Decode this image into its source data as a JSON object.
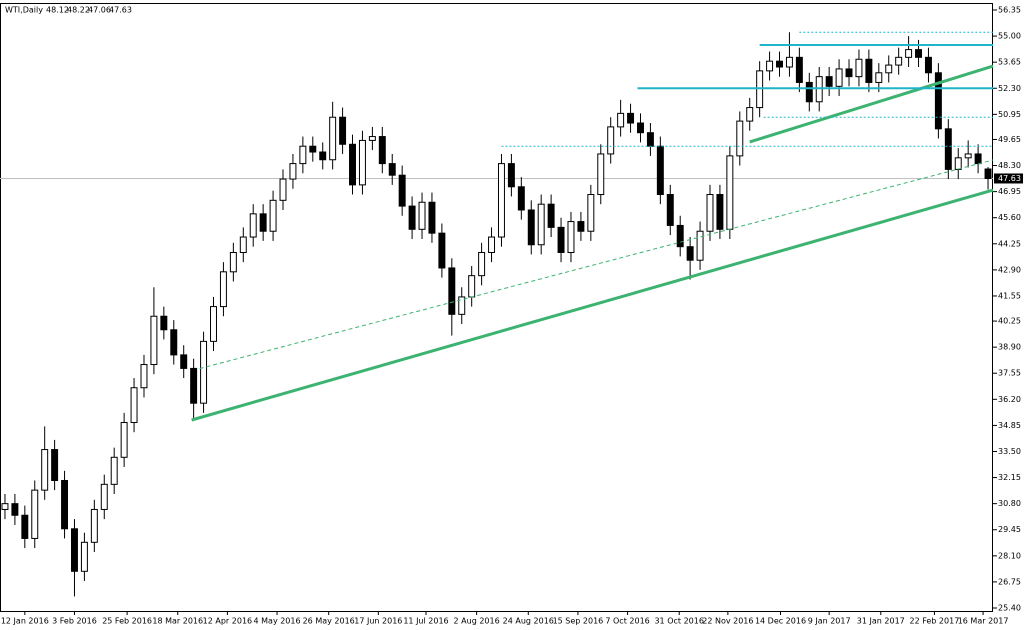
{
  "chart_data": {
    "type": "candlestick",
    "symbol": "WTI,Daily",
    "x": [
      0,
      1,
      2,
      3,
      4,
      5,
      6,
      7,
      8,
      9,
      10,
      11,
      12,
      13,
      14,
      15,
      16,
      17,
      18,
      19,
      20,
      21,
      22,
      23,
      24,
      25,
      26,
      27,
      28,
      29,
      30,
      31,
      32,
      33,
      34,
      35,
      36,
      37,
      38,
      39,
      40,
      41,
      42,
      43,
      44,
      45,
      46,
      47,
      48,
      49,
      50,
      51,
      52,
      53,
      54,
      55,
      56,
      57,
      58,
      59,
      60,
      61,
      62,
      63,
      64,
      65,
      66,
      67,
      68,
      69,
      70,
      71,
      72,
      73,
      74,
      75,
      76,
      77,
      78,
      79,
      80,
      81,
      82,
      83,
      84,
      85,
      86,
      87,
      88,
      89,
      90,
      91,
      92,
      93,
      94,
      95,
      96,
      97,
      98,
      99
    ],
    "open": [
      30.5,
      30.8,
      30.2,
      29.0,
      31.5,
      33.6,
      32.0,
      29.5,
      27.3,
      28.8,
      30.5,
      31.8,
      33.2,
      35.0,
      36.8,
      38.0,
      40.5,
      39.8,
      38.5,
      37.8,
      36.0,
      39.2,
      41.0,
      42.8,
      43.8,
      44.6,
      45.8,
      44.9,
      46.5,
      47.6,
      48.4,
      49.3,
      49.0,
      48.6,
      50.8,
      49.4,
      47.3,
      49.6,
      49.8,
      48.4,
      47.8,
      46.2,
      45.0,
      46.4,
      44.8,
      43.0,
      40.6,
      41.5,
      42.6,
      43.8,
      44.6,
      48.4,
      47.2,
      46.0,
      44.2,
      46.3,
      45.1,
      43.8,
      45.4,
      44.9,
      46.8,
      48.9,
      50.3,
      51.0,
      50.5,
      50.0,
      49.3,
      46.8,
      45.2,
      44.1,
      43.4,
      44.9,
      46.8,
      45.0,
      48.8,
      50.6,
      51.3,
      53.2,
      53.7,
      53.4,
      53.9,
      52.6,
      51.6,
      52.9,
      52.4,
      53.3,
      52.9,
      53.8,
      52.6,
      53.1,
      53.5,
      53.9,
      54.3,
      53.9,
      53.1,
      50.2,
      48.1,
      48.7,
      48.9,
      48.12
    ],
    "high": [
      31.3,
      31.3,
      30.7,
      32.0,
      34.8,
      34.1,
      32.5,
      30.0,
      29.3,
      31.0,
      32.3,
      33.7,
      35.5,
      37.3,
      38.5,
      42.0,
      41.0,
      40.3,
      39.0,
      38.3,
      39.7,
      41.5,
      43.3,
      44.3,
      45.1,
      46.3,
      46.3,
      47.0,
      48.1,
      48.9,
      49.8,
      49.8,
      49.5,
      51.6,
      51.3,
      49.9,
      50.1,
      50.3,
      50.3,
      48.9,
      48.3,
      46.7,
      46.9,
      46.9,
      45.3,
      43.5,
      42.0,
      43.1,
      44.3,
      45.1,
      48.9,
      48.9,
      47.7,
      46.5,
      46.8,
      46.8,
      45.6,
      45.9,
      45.9,
      47.3,
      49.4,
      50.8,
      51.7,
      51.5,
      51.0,
      50.5,
      49.8,
      47.3,
      45.7,
      44.6,
      45.4,
      47.3,
      47.3,
      49.3,
      51.1,
      51.8,
      53.7,
      54.2,
      54.2,
      55.2,
      54.4,
      53.1,
      53.4,
      53.4,
      53.8,
      53.8,
      54.3,
      54.3,
      53.6,
      54.0,
      54.4,
      55.0,
      54.8,
      54.4,
      53.6,
      50.7,
      49.2,
      49.6,
      49.4,
      48.22
    ],
    "low": [
      30.0,
      29.7,
      28.5,
      28.5,
      31.0,
      31.5,
      29.0,
      26.0,
      26.8,
      28.3,
      30.0,
      31.3,
      32.7,
      34.5,
      36.3,
      37.5,
      39.3,
      38.0,
      37.3,
      35.2,
      35.5,
      38.7,
      40.5,
      42.3,
      43.3,
      44.1,
      44.4,
      44.4,
      46.0,
      47.1,
      47.9,
      48.5,
      48.1,
      48.1,
      48.9,
      46.8,
      46.8,
      49.1,
      47.9,
      47.3,
      45.7,
      44.5,
      44.5,
      44.3,
      42.5,
      39.5,
      40.1,
      41.0,
      42.1,
      43.3,
      44.1,
      46.7,
      45.5,
      43.7,
      43.7,
      44.6,
      43.3,
      43.3,
      44.4,
      44.4,
      46.3,
      48.4,
      49.8,
      50.0,
      49.5,
      48.8,
      46.3,
      44.7,
      43.6,
      42.4,
      42.9,
      44.4,
      44.5,
      44.5,
      48.3,
      50.1,
      50.8,
      52.7,
      52.9,
      52.9,
      52.1,
      51.1,
      51.1,
      51.9,
      51.9,
      52.4,
      52.4,
      52.1,
      52.1,
      52.6,
      53.0,
      53.4,
      53.4,
      52.6,
      49.7,
      47.6,
      47.6,
      48.2,
      47.9,
      47.06
    ],
    "close": [
      30.8,
      30.2,
      29.0,
      31.5,
      33.6,
      32.0,
      29.5,
      27.3,
      28.8,
      30.5,
      31.8,
      33.2,
      35.0,
      36.8,
      38.0,
      40.5,
      39.8,
      38.5,
      37.8,
      36.0,
      39.2,
      41.0,
      42.8,
      43.8,
      44.6,
      45.8,
      44.9,
      46.5,
      47.6,
      48.4,
      49.3,
      49.0,
      48.6,
      50.8,
      49.4,
      47.3,
      49.6,
      49.8,
      48.4,
      47.8,
      46.2,
      45.0,
      46.4,
      44.8,
      43.0,
      40.6,
      41.5,
      42.6,
      43.8,
      44.6,
      48.4,
      47.2,
      46.0,
      44.2,
      46.3,
      45.1,
      43.8,
      45.4,
      44.9,
      46.8,
      48.9,
      50.3,
      51.0,
      50.5,
      50.0,
      49.3,
      46.8,
      45.2,
      44.1,
      43.4,
      44.9,
      46.8,
      45.0,
      48.8,
      50.6,
      51.3,
      53.2,
      53.7,
      53.4,
      53.9,
      52.6,
      51.6,
      52.9,
      52.4,
      53.3,
      52.9,
      53.8,
      52.6,
      53.1,
      53.5,
      53.9,
      54.3,
      53.9,
      53.1,
      50.2,
      48.1,
      48.7,
      48.9,
      48.4,
      47.63
    ],
    "up_color": "#ffffff",
    "down_color": "#000000",
    "wick_color": "#000000",
    "xlim": [
      -0.5,
      99.5
    ],
    "xticks": [
      {
        "value": 2,
        "label": "12 Jan 2016"
      },
      {
        "value": 7,
        "label": "3 Feb 2016"
      },
      {
        "value": 12.3,
        "label": "25 Feb 2016"
      },
      {
        "value": 17.4,
        "label": "18 Mar 2016"
      },
      {
        "value": 22.4,
        "label": "12 Apr 2016"
      },
      {
        "value": 27.4,
        "label": "4 May 2016"
      },
      {
        "value": 32.6,
        "label": "26 May 2016"
      },
      {
        "value": 37.6,
        "label": "17 Jun 2016"
      },
      {
        "value": 42.4,
        "label": "11 Jul 2016"
      },
      {
        "value": 47.5,
        "label": "2 Aug 2016"
      },
      {
        "value": 52.7,
        "label": "24 Aug 2016"
      },
      {
        "value": 57.7,
        "label": "15 Sep 2016"
      },
      {
        "value": 62.7,
        "label": "7 Oct 2016"
      },
      {
        "value": 67.9,
        "label": "31 Oct 2016"
      },
      {
        "value": 72.8,
        "label": "22 Nov 2016"
      },
      {
        "value": 78.1,
        "label": "14 Dec 2016"
      },
      {
        "value": 83,
        "label": "9 Jan 2017"
      },
      {
        "value": 88.2,
        "label": "31 Jan 2017"
      },
      {
        "value": 93.6,
        "label": "22 Feb 2017"
      },
      {
        "value": 98.5,
        "label": "16 Mar 2017"
      }
    ],
    "ylim": [
      25.4,
      56.35
    ],
    "yticks": [
      {
        "value": 25.4,
        "label": "25.40"
      },
      26.75,
      {
        "value": 28.1,
        "label": "28.10"
      },
      29.45,
      {
        "value": 30.8,
        "label": "30.80"
      },
      32.15,
      {
        "value": 33.5,
        "label": "33.50"
      },
      34.85,
      {
        "value": 36.2,
        "label": "36.20"
      },
      37.55,
      {
        "value": 38.9,
        "label": "38.90"
      },
      40.25,
      41.55,
      {
        "value": 42.9,
        "label": "42.90"
      },
      44.25,
      {
        "value": 45.6,
        "label": "45.60"
      },
      46.95,
      {
        "value": 48.3,
        "label": "48.30"
      },
      49.65,
      50.95,
      {
        "value": 52.3,
        "label": "52.30"
      },
      53.65,
      {
        "value": 55.0,
        "label": "55.00"
      },
      56.35
    ],
    "grid": false,
    "lines": [
      {
        "x": [
          18.8,
          100
        ],
        "y": [
          35.13,
          47.03
        ],
        "color": "#3cb371",
        "style": "solid",
        "width": 3
      },
      {
        "x": [
          19.6,
          100
        ],
        "y": [
          37.79,
          48.59
        ],
        "color": "#3cb371",
        "style": "dashed",
        "width": 1
      },
      {
        "x": [
          75,
          100
        ],
        "y": [
          49.52,
          53.45
        ],
        "color": "#3cb371",
        "style": "solid",
        "width": 3
      },
      {
        "x": [
          76,
          100
        ],
        "y": [
          54.54,
          54.54
        ],
        "color": "#1fb5c9",
        "style": "solid",
        "width": 2
      },
      {
        "x": [
          63.7,
          100
        ],
        "y": [
          52.3,
          52.3
        ],
        "color": "#1fb5c9",
        "style": "solid",
        "width": 2
      },
      {
        "x": [
          80,
          100
        ],
        "y": [
          55.2,
          55.2
        ],
        "color": "#1fb5c9",
        "style": "dotted",
        "width": 1
      },
      {
        "x": [
          76.4,
          100
        ],
        "y": [
          50.8,
          50.8
        ],
        "color": "#1fb5c9",
        "style": "dotted",
        "width": 1
      },
      {
        "x": [
          50,
          100
        ],
        "y": [
          49.3,
          49.3
        ],
        "color": "#1fb5c9",
        "style": "dotted",
        "width": 1
      }
    ]
  }
}
